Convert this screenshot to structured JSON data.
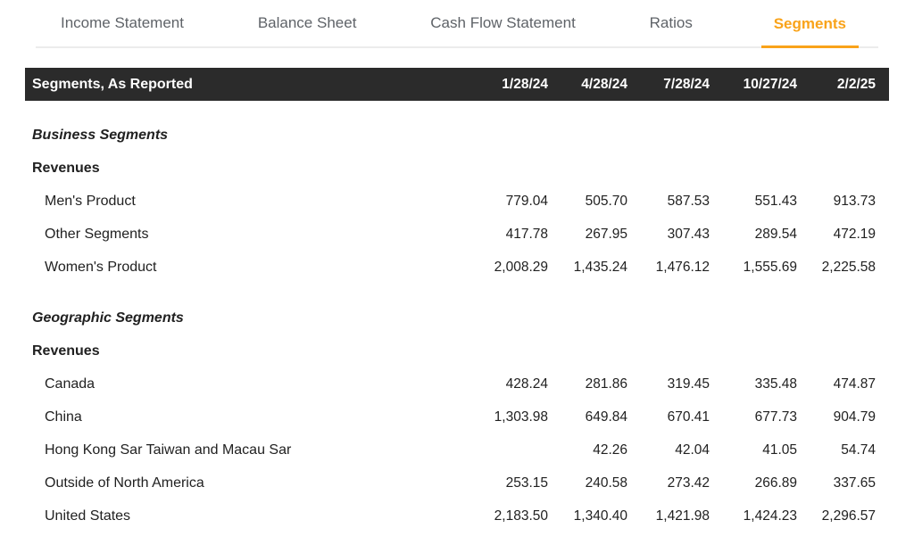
{
  "tabs": [
    {
      "label": "Income Statement",
      "active": false
    },
    {
      "label": "Balance Sheet",
      "active": false
    },
    {
      "label": "Cash Flow Statement",
      "active": false
    },
    {
      "label": "Ratios",
      "active": false
    },
    {
      "label": "Segments",
      "active": true
    }
  ],
  "accent_color": "#f9a31a",
  "header_bar_color": "#2b2b2b",
  "header": {
    "title": "Segments, As Reported",
    "columns": [
      "1/28/24",
      "4/28/24",
      "7/28/24",
      "10/27/24",
      "2/2/25"
    ]
  },
  "sections": [
    {
      "title": "Business Segments",
      "subtitle": "Revenues",
      "rows": [
        {
          "label": "Men's Product",
          "values": [
            "779.04",
            "505.70",
            "587.53",
            "551.43",
            "913.73"
          ]
        },
        {
          "label": "Other Segments",
          "values": [
            "417.78",
            "267.95",
            "307.43",
            "289.54",
            "472.19"
          ]
        },
        {
          "label": "Women's Product",
          "values": [
            "2,008.29",
            "1,435.24",
            "1,476.12",
            "1,555.69",
            "2,225.58"
          ]
        }
      ]
    },
    {
      "title": "Geographic Segments",
      "subtitle": "Revenues",
      "rows": [
        {
          "label": "Canada",
          "values": [
            "428.24",
            "281.86",
            "319.45",
            "335.48",
            "474.87"
          ]
        },
        {
          "label": "China",
          "values": [
            "1,303.98",
            "649.84",
            "670.41",
            "677.73",
            "904.79"
          ]
        },
        {
          "label": "Hong Kong Sar Taiwan and Macau Sar",
          "values": [
            "",
            "42.26",
            "42.04",
            "41.05",
            "54.74"
          ]
        },
        {
          "label": "Outside of North America",
          "values": [
            "253.15",
            "240.58",
            "273.42",
            "266.89",
            "337.65"
          ]
        },
        {
          "label": "United States",
          "values": [
            "2,183.50",
            "1,340.40",
            "1,421.98",
            "1,424.23",
            "2,296.57"
          ]
        }
      ]
    }
  ]
}
